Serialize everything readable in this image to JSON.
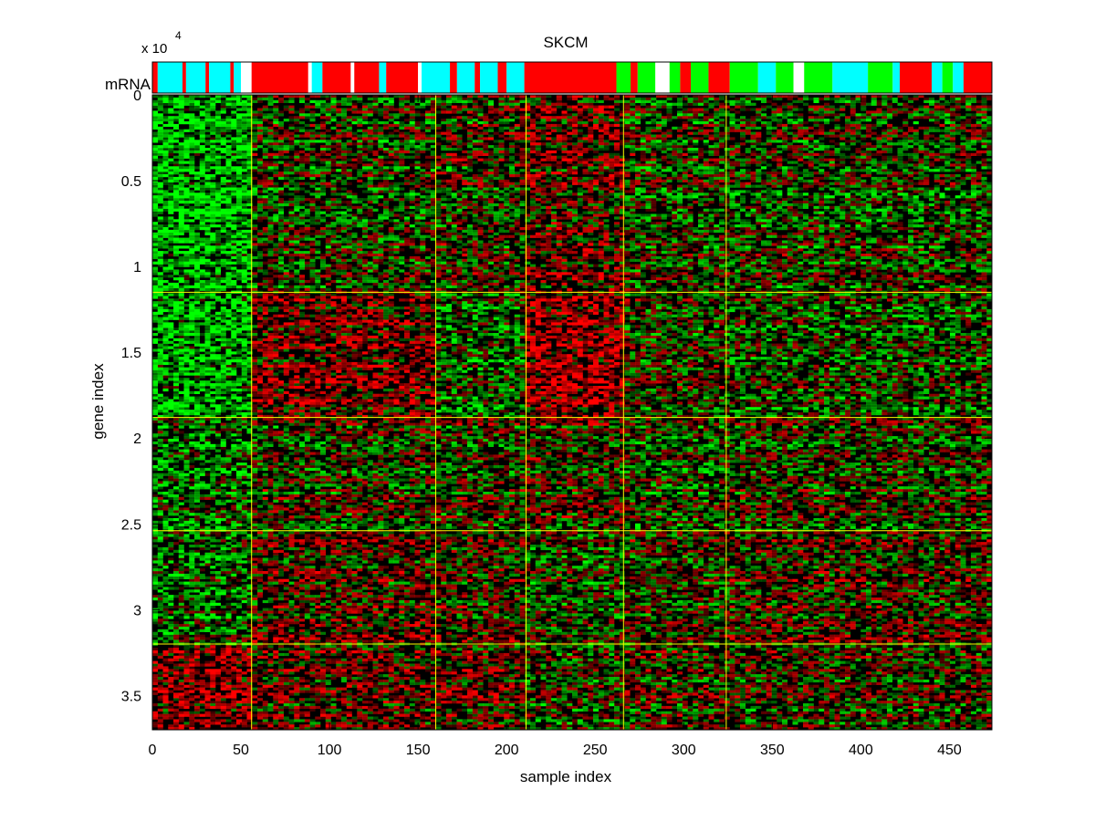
{
  "chart_data": {
    "type": "heatmap",
    "title": "SKCM",
    "xlabel": "sample index",
    "ylabel": "gene index",
    "xlim": [
      0,
      474
    ],
    "ylim": [
      0,
      37000
    ],
    "y_exponent_label": "x 10",
    "y_exponent_power": "4",
    "x_ticks": [
      0,
      50,
      100,
      150,
      200,
      250,
      300,
      350,
      400,
      450
    ],
    "x_tick_labels": [
      "0",
      "50",
      "100",
      "150",
      "200",
      "250",
      "300",
      "350",
      "400",
      "450"
    ],
    "y_ticks": [
      0,
      5000,
      10000,
      15000,
      20000,
      25000,
      30000,
      35000
    ],
    "y_tick_labels": [
      "0",
      "0.5",
      "1",
      "1.5",
      "2",
      "2.5",
      "3",
      "3.5"
    ],
    "y_axis_direction": "reversed",
    "colormap": {
      "low": "#00ff00",
      "mid": "#000000",
      "high": "#ff0000"
    },
    "cluster_boundaries_x": [
      56,
      160,
      211,
      266,
      324
    ],
    "cluster_boundaries_y": [
      11500,
      18800,
      25400,
      32000
    ],
    "boundary_line_color": "#ffff00",
    "annotation_track": {
      "label": "mRNA",
      "colors": [
        "#ff0000",
        "#00ffff",
        "#00ff00",
        "#ffffff"
      ],
      "segments": [
        {
          "start": 0,
          "end": 3,
          "color": "#ff0000"
        },
        {
          "start": 3,
          "end": 17,
          "color": "#00ffff"
        },
        {
          "start": 17,
          "end": 19,
          "color": "#ff0000"
        },
        {
          "start": 19,
          "end": 30,
          "color": "#00ffff"
        },
        {
          "start": 30,
          "end": 32,
          "color": "#ff0000"
        },
        {
          "start": 32,
          "end": 44,
          "color": "#00ffff"
        },
        {
          "start": 44,
          "end": 46,
          "color": "#ff0000"
        },
        {
          "start": 46,
          "end": 50,
          "color": "#00ffff"
        },
        {
          "start": 50,
          "end": 56,
          "color": "#ffffff"
        },
        {
          "start": 56,
          "end": 88,
          "color": "#ff0000"
        },
        {
          "start": 88,
          "end": 90,
          "color": "#ffffff"
        },
        {
          "start": 90,
          "end": 96,
          "color": "#00ffff"
        },
        {
          "start": 96,
          "end": 112,
          "color": "#ff0000"
        },
        {
          "start": 112,
          "end": 114,
          "color": "#ffffff"
        },
        {
          "start": 114,
          "end": 128,
          "color": "#ff0000"
        },
        {
          "start": 128,
          "end": 132,
          "color": "#00ffff"
        },
        {
          "start": 132,
          "end": 150,
          "color": "#ff0000"
        },
        {
          "start": 150,
          "end": 152,
          "color": "#ffffff"
        },
        {
          "start": 152,
          "end": 168,
          "color": "#00ffff"
        },
        {
          "start": 168,
          "end": 172,
          "color": "#ff0000"
        },
        {
          "start": 172,
          "end": 182,
          "color": "#00ffff"
        },
        {
          "start": 182,
          "end": 185,
          "color": "#ff0000"
        },
        {
          "start": 185,
          "end": 195,
          "color": "#00ffff"
        },
        {
          "start": 195,
          "end": 200,
          "color": "#ff0000"
        },
        {
          "start": 200,
          "end": 210,
          "color": "#00ffff"
        },
        {
          "start": 210,
          "end": 262,
          "color": "#ff0000"
        },
        {
          "start": 262,
          "end": 270,
          "color": "#00ff00"
        },
        {
          "start": 270,
          "end": 274,
          "color": "#ff0000"
        },
        {
          "start": 274,
          "end": 284,
          "color": "#00ff00"
        },
        {
          "start": 284,
          "end": 292,
          "color": "#ffffff"
        },
        {
          "start": 292,
          "end": 298,
          "color": "#00ff00"
        },
        {
          "start": 298,
          "end": 304,
          "color": "#ff0000"
        },
        {
          "start": 304,
          "end": 314,
          "color": "#00ff00"
        },
        {
          "start": 314,
          "end": 326,
          "color": "#ff0000"
        },
        {
          "start": 326,
          "end": 342,
          "color": "#00ff00"
        },
        {
          "start": 342,
          "end": 352,
          "color": "#00ffff"
        },
        {
          "start": 352,
          "end": 362,
          "color": "#00ff00"
        },
        {
          "start": 362,
          "end": 368,
          "color": "#ffffff"
        },
        {
          "start": 368,
          "end": 384,
          "color": "#00ff00"
        },
        {
          "start": 384,
          "end": 404,
          "color": "#00ffff"
        },
        {
          "start": 404,
          "end": 418,
          "color": "#00ff00"
        },
        {
          "start": 418,
          "end": 422,
          "color": "#00ffff"
        },
        {
          "start": 422,
          "end": 440,
          "color": "#ff0000"
        },
        {
          "start": 440,
          "end": 446,
          "color": "#00ffff"
        },
        {
          "start": 446,
          "end": 452,
          "color": "#00ff00"
        },
        {
          "start": 452,
          "end": 458,
          "color": "#00ffff"
        },
        {
          "start": 458,
          "end": 474,
          "color": "#ff0000"
        }
      ]
    },
    "grid": false
  }
}
